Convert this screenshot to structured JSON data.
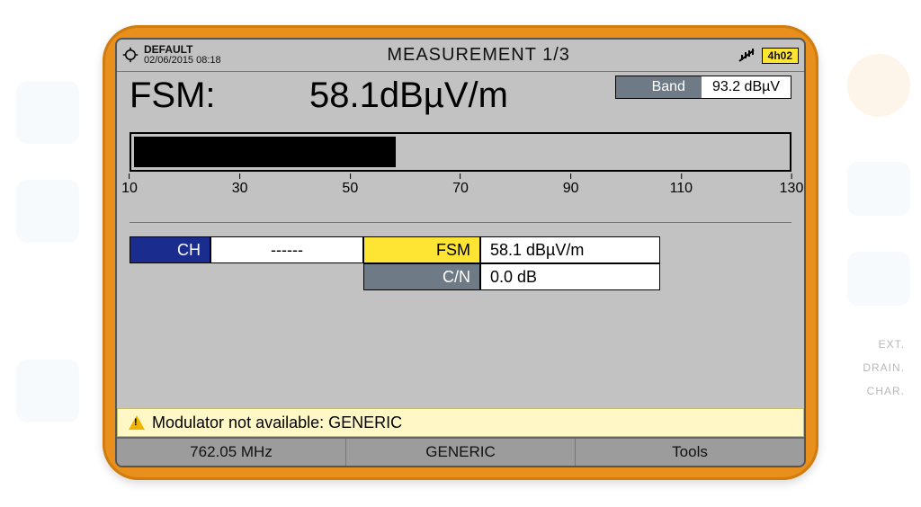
{
  "status": {
    "profile": "DEFAULT",
    "datetime": "02/06/2015 08:18",
    "title": "MEASUREMENT 1/3",
    "battery_text": "4h02",
    "battery_bg": "#ffe533"
  },
  "band": {
    "label": "Band",
    "value": "93.2 dBµV"
  },
  "fsm_main": {
    "label": "FSM:",
    "value": "58.1dBµV/m"
  },
  "meter": {
    "min": 10,
    "max": 130,
    "value": 58.1,
    "ticks": [
      10,
      30,
      50,
      70,
      90,
      110,
      130
    ],
    "fill_color": "#000000",
    "bg_color": "#c2c2c2"
  },
  "readings": {
    "ch_label": "CH",
    "ch_value": "------",
    "fsm_label": "FSM",
    "fsm_value": "58.1 dBµV/m",
    "cn_label": "C/N",
    "cn_value": "0.0 dB",
    "colors": {
      "ch_k_bg": "#1a2d8f",
      "fsm_k_bg": "#ffe533",
      "cn_k_bg": "#6e7a86",
      "val_bg": "#ffffff"
    }
  },
  "warning": {
    "text": "Modulator not available: GENERIC",
    "bg": "#fff8c6"
  },
  "footer": {
    "freq": "762.05 MHz",
    "profile": "GENERIC",
    "tools": "Tools"
  },
  "side_labels": {
    "ext": "EXT.",
    "drain": "DRAIN.",
    "char": "CHAR."
  }
}
